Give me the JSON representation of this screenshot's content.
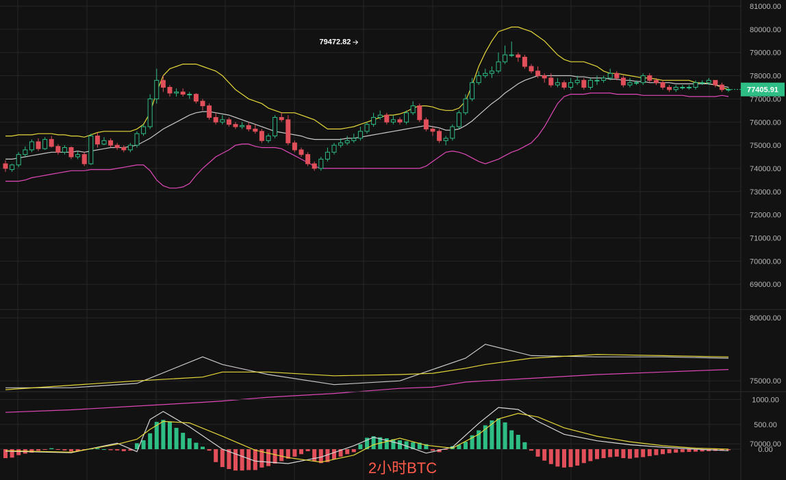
{
  "chart_data": {
    "type": "candlestick",
    "title": "2小时BTC",
    "grid": true,
    "colors": {
      "background": "#121212",
      "grid": "#262626",
      "up": "#2ebd85",
      "down": "#e04f5a",
      "boll_upper": "#e6d83a",
      "boll_mid": "#c8c8c8",
      "boll_lower": "#e048b8",
      "last_price_tag": "#2ebd85",
      "title_color": "#ff5a4a",
      "axis_text": "#b8b8b8"
    },
    "price_axis": {
      "ylim": [
        68000,
        81000
      ],
      "ticks": [
        "81000.00",
        "80000.00",
        "79000.00",
        "78000.00",
        "77000.00",
        "76000.00",
        "75000.00",
        "74000.00",
        "73000.00",
        "72000.00",
        "71000.00",
        "70000.00",
        "69000.00"
      ],
      "tick_values": [
        81000,
        80000,
        79000,
        78000,
        77000,
        76000,
        75000,
        74000,
        73000,
        72000,
        71000,
        70000,
        69000
      ]
    },
    "last_price": {
      "value": 77405.91,
      "label": "77405.91"
    },
    "annotation": {
      "label": "79472.82",
      "value": 79472.82,
      "bar_index": 54
    },
    "candles": {
      "open": [
        74200,
        73950,
        74150,
        74600,
        74800,
        75150,
        74850,
        75250,
        74950,
        74700,
        74900,
        74500,
        74600,
        74200,
        75400,
        75050,
        75200,
        75000,
        74900,
        74800,
        75000,
        75500,
        75800,
        77000,
        77800,
        77500,
        77250,
        77300,
        77200,
        77200,
        76900,
        76700,
        76200,
        76000,
        76100,
        75900,
        75800,
        75850,
        75700,
        75600,
        75200,
        75400,
        76200,
        76100,
        75100,
        74800,
        74600,
        74200,
        74000,
        74400,
        74700,
        75000,
        75100,
        75200,
        75300,
        75600,
        75900,
        76200,
        76300,
        76000,
        76100,
        76000,
        76400,
        76700,
        76100,
        75700,
        75600,
        75200,
        75300,
        75800,
        76400,
        77000,
        77700,
        78000,
        78100,
        78200,
        78600,
        78900,
        78900,
        78800,
        78400,
        78200,
        78000,
        77900,
        77600,
        77700,
        77500,
        77700,
        77800,
        77500,
        77800,
        77800,
        77900,
        78100,
        77900,
        77600,
        77700,
        77700,
        78000,
        77800,
        77700,
        77500,
        77400,
        77500,
        77500,
        77500,
        77700,
        77700,
        77800,
        77600,
        77400
      ],
      "close": [
        74000,
        74150,
        74600,
        74800,
        75150,
        74850,
        75250,
        74950,
        74700,
        74900,
        74500,
        74600,
        74200,
        75400,
        75050,
        75200,
        75000,
        74900,
        74800,
        75000,
        75500,
        75800,
        77000,
        77800,
        77500,
        77250,
        77300,
        77200,
        77200,
        76900,
        76700,
        76200,
        76000,
        76100,
        75900,
        75800,
        75850,
        75700,
        75600,
        75200,
        75400,
        76200,
        76100,
        75100,
        74800,
        74600,
        74200,
        74000,
        74400,
        74700,
        75000,
        75100,
        75200,
        75300,
        75600,
        75900,
        76200,
        76300,
        76000,
        76100,
        76000,
        76400,
        76700,
        76100,
        75700,
        75600,
        75200,
        75300,
        75800,
        76400,
        77000,
        77700,
        78000,
        78100,
        78200,
        78600,
        78900,
        78900,
        78800,
        78400,
        78200,
        78000,
        77900,
        77600,
        77700,
        77500,
        77700,
        77800,
        77500,
        77800,
        77800,
        77900,
        78100,
        77900,
        77600,
        77700,
        77700,
        78000,
        77800,
        77700,
        77500,
        77400,
        77500,
        77500,
        77500,
        77700,
        77700,
        77800,
        77600,
        77400,
        77405.91
      ],
      "high": [
        74350,
        74200,
        74700,
        74950,
        75250,
        75300,
        75350,
        75400,
        75050,
        75000,
        74950,
        74750,
        74700,
        75500,
        75550,
        75350,
        75300,
        75100,
        75000,
        75100,
        75600,
        75900,
        77200,
        78300,
        78000,
        77600,
        77450,
        77450,
        77300,
        77250,
        77000,
        76800,
        76400,
        76300,
        76200,
        76000,
        76000,
        76000,
        75900,
        75700,
        75500,
        76300,
        76400,
        76300,
        75200,
        74900,
        74700,
        74300,
        74500,
        74900,
        75100,
        75300,
        75400,
        75500,
        75800,
        76000,
        76400,
        76500,
        76400,
        76300,
        76200,
        76500,
        76900,
        76800,
        76200,
        75800,
        75700,
        75400,
        75900,
        76500,
        77200,
        77900,
        78200,
        78300,
        78400,
        79000,
        79300,
        79472.82,
        79000,
        78900,
        78500,
        78400,
        78100,
        78100,
        77900,
        77800,
        77900,
        78000,
        77900,
        77900,
        78000,
        78000,
        78300,
        78200,
        78000,
        77900,
        77800,
        78100,
        78100,
        77900,
        77800,
        77600,
        77600,
        77600,
        77600,
        77800,
        77800,
        77900,
        77800,
        77700,
        77500
      ],
      "low": [
        73850,
        73850,
        74050,
        74500,
        74700,
        74750,
        74800,
        74900,
        74600,
        74600,
        74400,
        74400,
        74100,
        74150,
        74900,
        75000,
        74900,
        74800,
        74700,
        74700,
        74900,
        75400,
        75700,
        76800,
        77300,
        77100,
        77100,
        77100,
        77000,
        76800,
        76500,
        76100,
        75900,
        75900,
        75800,
        75700,
        75700,
        75600,
        75500,
        75100,
        75100,
        75300,
        76000,
        75000,
        74700,
        74500,
        74100,
        73900,
        73900,
        74300,
        74600,
        74900,
        75000,
        75100,
        75200,
        75500,
        75800,
        76100,
        75900,
        75900,
        75900,
        75900,
        76300,
        76000,
        75600,
        75400,
        75100,
        75000,
        75200,
        75700,
        76300,
        76900,
        77600,
        77900,
        77900,
        78100,
        78500,
        78800,
        78600,
        78300,
        78100,
        77900,
        77700,
        77500,
        77500,
        77400,
        77400,
        77600,
        77400,
        77400,
        77600,
        77700,
        77800,
        77800,
        77500,
        77500,
        77600,
        77600,
        77700,
        77600,
        77400,
        77300,
        77300,
        77400,
        77400,
        77400,
        77600,
        77600,
        77500,
        77300,
        77300
      ]
    },
    "bollinger": {
      "upper": [
        75400,
        75400,
        75450,
        75450,
        75450,
        75500,
        75500,
        75500,
        75450,
        75450,
        75400,
        75400,
        75350,
        75450,
        75550,
        75600,
        75600,
        75600,
        75600,
        75600,
        75700,
        75900,
        76400,
        77300,
        78000,
        78300,
        78400,
        78500,
        78500,
        78500,
        78400,
        78300,
        78200,
        78000,
        77700,
        77400,
        77200,
        77000,
        76900,
        76800,
        76600,
        76500,
        76400,
        76400,
        76400,
        76300,
        76200,
        76100,
        75900,
        75700,
        75700,
        75700,
        75750,
        75800,
        75900,
        76000,
        76100,
        76200,
        76300,
        76300,
        76350,
        76450,
        76600,
        76700,
        76700,
        76650,
        76550,
        76500,
        76500,
        76600,
        76900,
        77600,
        78400,
        79000,
        79500,
        79900,
        80000,
        80100,
        80100,
        80000,
        79900,
        79700,
        79500,
        79200,
        78900,
        78700,
        78600,
        78600,
        78600,
        78500,
        78400,
        78200,
        78100,
        78100,
        78050,
        78000,
        77950,
        77900,
        77900,
        77850,
        77800,
        77800,
        77800,
        77800,
        77800,
        77700,
        77700,
        77650,
        77600,
        77500,
        77400
      ],
      "mid": [
        74400,
        74400,
        74450,
        74500,
        74550,
        74600,
        74650,
        74700,
        74700,
        74700,
        74700,
        74750,
        74700,
        74750,
        74800,
        74850,
        74900,
        74900,
        74900,
        74950,
        75000,
        75150,
        75300,
        75500,
        75700,
        75850,
        76000,
        76150,
        76300,
        76400,
        76450,
        76450,
        76400,
        76350,
        76300,
        76200,
        76100,
        76000,
        75900,
        75800,
        75700,
        75600,
        75550,
        75500,
        75450,
        75400,
        75300,
        75250,
        75250,
        75250,
        75250,
        75250,
        75300,
        75300,
        75350,
        75400,
        75450,
        75500,
        75550,
        75600,
        75650,
        75700,
        75750,
        75800,
        75850,
        75800,
        75750,
        75650,
        75650,
        75700,
        75850,
        76050,
        76300,
        76550,
        76800,
        77000,
        77250,
        77450,
        77650,
        77800,
        77900,
        78000,
        78000,
        78000,
        78000,
        78000,
        78000,
        77950,
        77950,
        77900,
        77900,
        77900,
        77850,
        77850,
        77800,
        77800,
        77750,
        77750,
        77700,
        77700,
        77700,
        77700,
        77650,
        77650,
        77650,
        77650,
        77650,
        77650,
        77600,
        77550,
        77500
      ],
      "lower": [
        73450,
        73450,
        73450,
        73500,
        73600,
        73650,
        73700,
        73750,
        73800,
        73850,
        73900,
        73900,
        73900,
        73950,
        73950,
        73950,
        73950,
        74000,
        74050,
        74100,
        74150,
        74150,
        73900,
        73500,
        73250,
        73150,
        73150,
        73200,
        73350,
        73700,
        74000,
        74250,
        74500,
        74650,
        74800,
        75000,
        75050,
        75050,
        74950,
        74900,
        74900,
        74900,
        74850,
        74700,
        74550,
        74400,
        74250,
        74100,
        74000,
        74000,
        74000,
        74000,
        74000,
        74000,
        74000,
        74000,
        74000,
        74000,
        74000,
        74000,
        74000,
        74000,
        74000,
        74000,
        74100,
        74300,
        74500,
        74700,
        74750,
        74700,
        74600,
        74450,
        74300,
        74200,
        74300,
        74400,
        74550,
        74700,
        74800,
        74950,
        75100,
        75400,
        75800,
        76300,
        76800,
        77100,
        77200,
        77200,
        77200,
        77250,
        77250,
        77250,
        77250,
        77200,
        77200,
        77200,
        77200,
        77150,
        77150,
        77150,
        77150,
        77150,
        77150,
        77150,
        77100,
        77100,
        77100,
        77100,
        77100,
        77150,
        77100
      ]
    },
    "ma_panel": {
      "ticks": [
        "80000.00",
        "75000.00",
        "70000.00"
      ],
      "tick_values": [
        80000,
        75000,
        70000
      ],
      "ylim": [
        68500,
        81000
      ],
      "x_index": [
        0,
        10,
        20,
        30,
        33,
        40,
        50,
        60,
        65,
        70,
        73,
        80,
        90,
        100,
        110
      ],
      "white": [
        74450,
        74450,
        74800,
        76900,
        76300,
        75500,
        74700,
        75000,
        75900,
        76800,
        77900,
        77000,
        76900,
        76900,
        76800
      ],
      "yellow": [
        74300,
        74650,
        75000,
        75300,
        75700,
        75700,
        75400,
        75500,
        75600,
        76000,
        76300,
        76800,
        77100,
        77000,
        76900
      ],
      "pink": [
        72500,
        72700,
        73000,
        73300,
        73400,
        73700,
        74000,
        74400,
        74500,
        74900,
        75000,
        75200,
        75500,
        75700,
        75900
      ]
    },
    "macd_panel": {
      "ticks": [
        "1000.00",
        "500.00",
        "0.00"
      ],
      "tick_values": [
        1000,
        500,
        0
      ],
      "ylim": [
        -500,
        1130
      ],
      "dif_x": [
        0,
        10,
        17,
        20,
        22,
        24,
        28,
        33,
        38,
        43,
        48,
        53,
        56,
        60,
        64,
        68,
        72,
        75,
        78,
        81,
        85,
        90,
        95,
        100,
        105,
        110
      ],
      "dif": [
        -40,
        -70,
        120,
        -50,
        600,
        760,
        450,
        0,
        -240,
        -290,
        -160,
        70,
        240,
        110,
        -80,
        40,
        520,
        840,
        800,
        560,
        300,
        170,
        90,
        40,
        0,
        -30
      ],
      "dea_x": [
        0,
        10,
        17,
        20,
        22,
        24,
        28,
        33,
        38,
        43,
        48,
        53,
        56,
        60,
        64,
        68,
        72,
        75,
        78,
        81,
        85,
        90,
        95,
        100,
        105,
        110
      ],
      "dea": [
        -30,
        -60,
        100,
        200,
        400,
        560,
        530,
        260,
        -20,
        -170,
        -260,
        -120,
        90,
        220,
        80,
        20,
        300,
        610,
        720,
        650,
        430,
        260,
        150,
        70,
        20,
        0
      ],
      "hist": [
        -180,
        -170,
        -120,
        -90,
        -70,
        -30,
        -10,
        20,
        -10,
        -25,
        -45,
        -35,
        -20,
        10,
        20,
        0,
        -20,
        -25,
        -40,
        -30,
        120,
        180,
        320,
        550,
        590,
        560,
        430,
        330,
        220,
        130,
        50,
        -30,
        -260,
        -360,
        -400,
        -430,
        -430,
        -420,
        -420,
        -370,
        -340,
        -290,
        -240,
        -190,
        -150,
        -100,
        -40,
        -240,
        -280,
        -260,
        -200,
        -150,
        -100,
        -60,
        100,
        230,
        260,
        240,
        220,
        200,
        180,
        160,
        140,
        130,
        100,
        -30,
        -60,
        -10,
        60,
        90,
        150,
        280,
        380,
        480,
        580,
        620,
        540,
        380,
        290,
        140,
        -30,
        -150,
        -230,
        -300,
        -350,
        -370,
        -360,
        -330,
        -280,
        -240,
        -200,
        -180,
        -160,
        -150,
        -180,
        -190,
        -170,
        -160,
        -140,
        -120,
        -100,
        -80,
        -70,
        -60,
        -55,
        -50,
        -45,
        -40,
        -35,
        -30,
        -20
      ]
    }
  }
}
